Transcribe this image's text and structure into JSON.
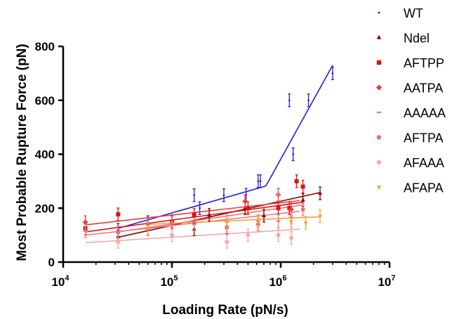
{
  "chart_data": {
    "type": "scatter",
    "x_scale": "log",
    "xlabel": "Loading Rate (pN/s)",
    "ylabel": "Most Probable Rupture Force (pN)",
    "xlim": [
      10000,
      10000000
    ],
    "ylim": [
      0,
      800
    ],
    "x_ticks": [
      {
        "value": 10000,
        "base": "10",
        "exp": "4"
      },
      {
        "value": 100000,
        "base": "10",
        "exp": "5"
      },
      {
        "value": 1000000,
        "base": "10",
        "exp": "6"
      },
      {
        "value": 10000000,
        "base": "10",
        "exp": "7"
      }
    ],
    "y_ticks": [
      {
        "value": 0,
        "label": "0"
      },
      {
        "value": 200,
        "label": "200"
      },
      {
        "value": 400,
        "label": "400"
      },
      {
        "value": 600,
        "label": "600"
      },
      {
        "value": 800,
        "label": "800"
      }
    ],
    "legend_position": "right",
    "series": [
      {
        "name": "WT",
        "color": "#1f1fdd",
        "marker": "dot",
        "points": [
          [
            32000,
            120
          ],
          [
            60000,
            148
          ],
          [
            100000,
            150
          ],
          [
            160000,
            248
          ],
          [
            180000,
            200
          ],
          [
            300000,
            248
          ],
          [
            320000,
            150
          ],
          [
            480000,
            250
          ],
          [
            620000,
            300
          ],
          [
            650000,
            300
          ],
          [
            950000,
            250
          ],
          [
            1200000,
            600
          ],
          [
            1300000,
            400
          ],
          [
            1800000,
            600
          ],
          [
            3000000,
            700
          ]
        ],
        "fits": [
          [
            [
              32000,
              125
            ],
            [
              730000,
              282
            ]
          ],
          [
            [
              730000,
              282
            ],
            [
              3000000,
              730
            ]
          ]
        ]
      },
      {
        "name": "Ndel",
        "color": "#8b0000",
        "marker": "triangle",
        "points": [
          [
            32000,
            95
          ],
          [
            160000,
            122
          ],
          [
            220000,
            175
          ],
          [
            320000,
            128
          ],
          [
            470000,
            200
          ],
          [
            700000,
            172
          ],
          [
            1600000,
            230
          ],
          [
            2300000,
            255
          ]
        ],
        "fits": [
          [
            [
              32000,
              92
            ],
            [
              2300000,
              258
            ]
          ]
        ]
      },
      {
        "name": "AFTPP",
        "color": "#e01010",
        "marker": "square",
        "points": [
          [
            16000,
            125
          ],
          [
            32000,
            177
          ],
          [
            100000,
            150
          ],
          [
            160000,
            175
          ],
          [
            500000,
            200
          ],
          [
            950000,
            200
          ],
          [
            1200000,
            200
          ],
          [
            1400000,
            300
          ],
          [
            1600000,
            280
          ]
        ],
        "fits": [
          [
            [
              16000,
              112
            ],
            [
              1600000,
              222
            ]
          ]
        ]
      },
      {
        "name": "AATPA",
        "color": "#ea3b3b",
        "marker": "diamond",
        "points": [
          [
            16000,
            148
          ],
          [
            60000,
            142
          ],
          [
            470000,
            225
          ],
          [
            950000,
            250
          ],
          [
            1250000,
            195
          ]
        ],
        "fits": [
          [
            [
              16000,
              138
            ],
            [
              1500000,
              228
            ]
          ]
        ]
      },
      {
        "name": "AAAAA",
        "color": "#f27c7c",
        "marker": "dash",
        "points": [
          [
            16000,
            115
          ],
          [
            60000,
            122
          ],
          [
            160000,
            140
          ],
          [
            320000,
            150
          ],
          [
            620000,
            152
          ],
          [
            950000,
            152
          ],
          [
            1250000,
            165
          ]
        ],
        "fits": [
          [
            [
              16000,
              100
            ],
            [
              1500000,
              188
            ]
          ]
        ]
      },
      {
        "name": "AFTPA",
        "color": "#ee6f6f",
        "marker": "circle",
        "points": [
          [
            32000,
            110
          ],
          [
            100000,
            145
          ],
          [
            320000,
            130
          ],
          [
            620000,
            140
          ],
          [
            950000,
            250
          ],
          [
            1600000,
            195
          ]
        ],
        "fits": [
          [
            [
              32000,
              112
            ],
            [
              1600000,
              212
            ]
          ]
        ]
      },
      {
        "name": "AFAAA",
        "color": "#f5aaaa",
        "marker": "circle",
        "points": [
          [
            32000,
            75
          ],
          [
            100000,
            100
          ],
          [
            320000,
            75
          ],
          [
            500000,
            100
          ],
          [
            950000,
            100
          ],
          [
            1250000,
            90
          ]
        ],
        "fits": [
          [
            [
              16000,
              72
            ],
            [
              1500000,
              122
            ]
          ]
        ]
      },
      {
        "name": "AFAPA",
        "color": "#f4a040",
        "marker": "triangle-down",
        "points": [
          [
            60000,
            125
          ],
          [
            320000,
            150
          ],
          [
            620000,
            152
          ],
          [
            1250000,
            150
          ],
          [
            1700000,
            145
          ],
          [
            2300000,
            170
          ]
        ],
        "fits": [
          [
            [
              60000,
              140
            ],
            [
              2300000,
              168
            ]
          ]
        ]
      }
    ]
  }
}
